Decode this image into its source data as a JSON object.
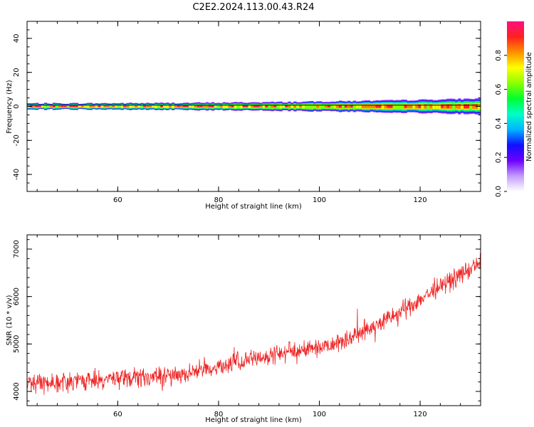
{
  "title": "C2E2.2024.113.00.43.R24",
  "chart_data": [
    {
      "type": "heatmap",
      "name": "spectrogram",
      "xlabel": "Height of straight line (km)",
      "ylabel": "Frequency (Hz)",
      "xlim": [
        42,
        132
      ],
      "ylim": [
        -50,
        50
      ],
      "xticks": [
        60,
        80,
        100,
        120
      ],
      "yticks": [
        -40,
        -20,
        0,
        20,
        40
      ],
      "band_center_hz": 0,
      "band_halfwidth_start_hz": 1.5,
      "band_halfwidth_end_hz": 4.5,
      "peak_amplitude": 1.0,
      "colorbar": {
        "label": "Normalized spectral amplitude",
        "range": [
          0,
          1
        ],
        "ticks": [
          0.0,
          0.2,
          0.4,
          0.6,
          0.8
        ],
        "tick_labels": [
          "0.0",
          "0.2",
          "0.4",
          "0.6",
          "0.8"
        ],
        "colors": [
          "#ffffff",
          "#c39bff",
          "#6c00ff",
          "#1010ff",
          "#00b4ff",
          "#00ffc8",
          "#00ff30",
          "#8cff00",
          "#ffff00",
          "#ff9000",
          "#ff2020",
          "#ff1080"
        ]
      }
    },
    {
      "type": "line",
      "name": "snr",
      "xlabel": "Height of straight line (km)",
      "ylabel": "SNR (10 * v/v)",
      "xlim": [
        42,
        132
      ],
      "ylim": [
        3700,
        7300
      ],
      "xticks": [
        60,
        80,
        100,
        120
      ],
      "yticks": [
        4000,
        5000,
        6000,
        7000
      ],
      "color": "#ee2222",
      "trend_x": [
        42,
        50,
        60,
        70,
        80,
        90,
        100,
        105,
        110,
        115,
        120,
        125,
        132
      ],
      "trend_y": [
        4200,
        4200,
        4270,
        4320,
        4520,
        4760,
        4950,
        5080,
        5330,
        5600,
        5940,
        6280,
        6700
      ],
      "noise_amplitude": 150
    }
  ]
}
